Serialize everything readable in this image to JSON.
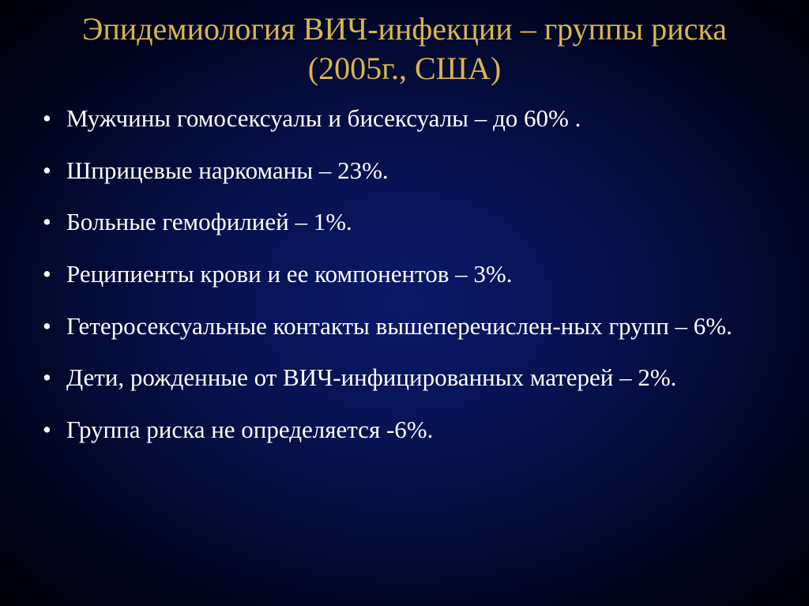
{
  "title_color": "#d9b64a",
  "text_color": "#ffffff",
  "title": "Эпидемиология ВИЧ-инфекции – группы риска (2005г., США)",
  "bullets": [
    "Мужчины гомосексуалы и бисексуалы – до 60% .",
    "Шприцевые наркоманы – 23%.",
    "Больные гемофилией – 1%.",
    "Реципиенты крови и ее компонентов – 3%.",
    "Гетеросексуальные контакты вышеперечислен-ных групп – 6%.",
    "Дети, рожденные от ВИЧ-инфицированных матерей – 2%.",
    "Группа риска не определяется -6%."
  ],
  "title_fontsize": 40,
  "bullet_fontsize": 31
}
